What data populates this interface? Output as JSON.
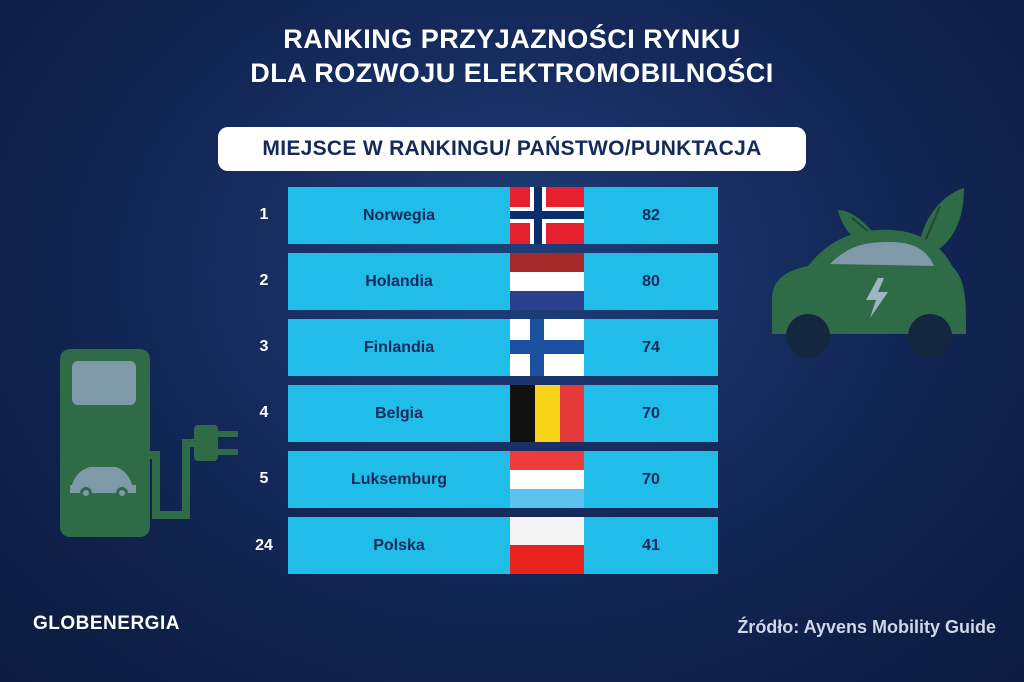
{
  "title": {
    "line1": "RANKING PRZYJAZNOŚCI RYNKU",
    "line2": "DLA ROZWOJU ELEKTROMOBILNOŚCI"
  },
  "subtitle": "MIEJSCE W RANKINGU/ PAŃSTWO/PUNKTACJA",
  "rows": [
    {
      "rank": "1",
      "country": "Norwegia",
      "score": "82",
      "flag": "norway"
    },
    {
      "rank": "2",
      "country": "Holandia",
      "score": "80",
      "flag": "netherlands"
    },
    {
      "rank": "3",
      "country": "Finlandia",
      "score": "74",
      "flag": "finland"
    },
    {
      "rank": "4",
      "country": "Belgia",
      "score": "70",
      "flag": "belgium"
    },
    {
      "rank": "5",
      "country": "Luksemburg",
      "score": "70",
      "flag": "luxembourg"
    },
    {
      "rank": "24",
      "country": "Polska",
      "score": "41",
      "flag": "poland"
    }
  ],
  "logo": "GLOBENERGIA",
  "source": "Źródło: Ayvens Mobility Guide",
  "colors": {
    "row_bg": "#1fbde8",
    "text_dark": "#142a5c",
    "decor_green": "#2f6b47"
  },
  "icons": [
    "charging-station-icon",
    "electric-car-icon",
    "leaf-icon",
    "plug-icon"
  ]
}
